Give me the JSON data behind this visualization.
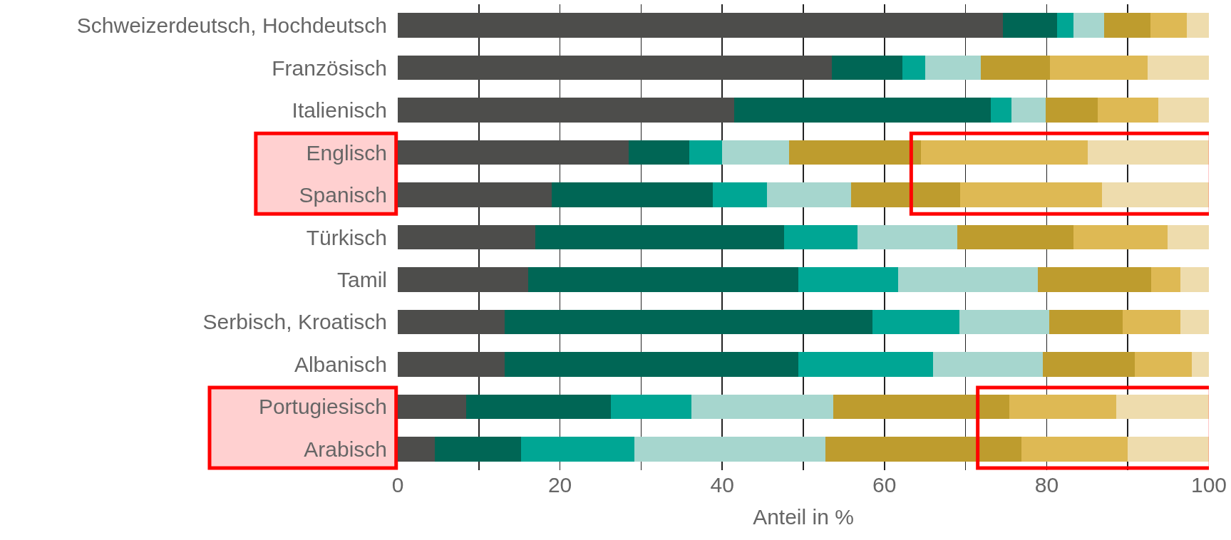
{
  "chart_data": {
    "type": "bar",
    "orientation": "horizontal",
    "stacked": true,
    "xlabel": "Anteil in %",
    "categories": [
      "Schweizerdeutsch, Hochdeutsch",
      "Französisch",
      "Italienisch",
      "Englisch",
      "Spanisch",
      "Türkisch",
      "Tamil",
      "Serbisch, Kroatisch",
      "Albanisch",
      "Portugiesisch",
      "Arabisch"
    ],
    "series": [
      {
        "color": "#4d4d4b",
        "values": [
          74.6,
          53.5,
          41.5,
          28.5,
          19.0,
          17.0,
          16.1,
          13.2,
          13.2,
          8.4,
          4.6
        ]
      },
      {
        "color": "#006655",
        "values": [
          6.7,
          8.7,
          31.6,
          7.4,
          19.8,
          30.6,
          33.3,
          45.3,
          36.2,
          17.9,
          10.6
        ]
      },
      {
        "color": "#00a694",
        "values": [
          2.0,
          2.8,
          2.6,
          4.1,
          6.7,
          9.1,
          12.3,
          10.7,
          16.6,
          9.9,
          14.0
        ]
      },
      {
        "color": "#a6d6ce",
        "values": [
          3.8,
          6.9,
          4.2,
          8.2,
          10.4,
          12.3,
          17.2,
          11.1,
          13.5,
          17.5,
          23.5
        ]
      },
      {
        "color": "#be9c2e",
        "values": [
          5.7,
          8.5,
          6.4,
          16.3,
          13.4,
          14.3,
          14.0,
          9.1,
          11.4,
          21.7,
          24.2
        ]
      },
      {
        "color": "#deb954",
        "values": [
          4.5,
          12.0,
          7.5,
          20.6,
          17.5,
          11.6,
          3.6,
          7.1,
          7.0,
          13.2,
          13.1
        ]
      },
      {
        "color": "#eedcad",
        "values": [
          2.7,
          7.6,
          6.2,
          14.9,
          13.2,
          5.1,
          3.5,
          3.5,
          2.1,
          11.4,
          10.0
        ]
      }
    ],
    "xlim": [
      0,
      100
    ],
    "xticks": [
      0,
      {
        "value": 10,
        "label": null
      },
      20,
      {
        "value": 30,
        "label": null
      },
      40,
      {
        "value": 50,
        "label": null
      },
      60,
      {
        "value": 70,
        "label": null
      },
      80,
      {
        "value": 90,
        "label": null
      },
      100
    ],
    "grid": "x"
  }
}
